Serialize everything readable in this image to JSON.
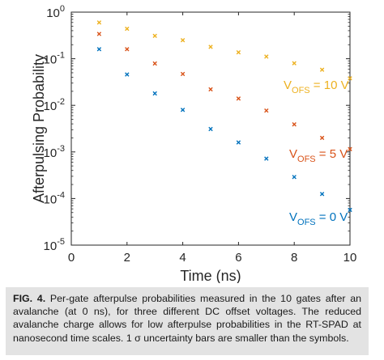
{
  "chart_data": {
    "type": "scatter",
    "xlabel": "Time (ns)",
    "ylabel": "Afterpulsing Probability",
    "xlim": [
      0,
      10
    ],
    "ylim": [
      1e-05,
      1
    ],
    "yscale": "log",
    "x_ticks": [
      "0",
      "2",
      "4",
      "6",
      "8",
      "10"
    ],
    "x_tick_values": [
      0,
      2,
      4,
      6,
      8,
      10
    ],
    "y_ticks": [
      {
        "base": "10",
        "exp": "0"
      },
      {
        "base": "10",
        "exp": "-1"
      },
      {
        "base": "10",
        "exp": "-2"
      },
      {
        "base": "10",
        "exp": "-3"
      },
      {
        "base": "10",
        "exp": "-4"
      },
      {
        "base": "10",
        "exp": "-5"
      }
    ],
    "grid": false,
    "marker": "x",
    "x": [
      1,
      2,
      3,
      4,
      5,
      6,
      7,
      8,
      9,
      10
    ],
    "series": [
      {
        "label_main": "V",
        "label_sub": "OFS",
        "label_value": " = 10 V",
        "color": "#edb120",
        "values": [
          0.6,
          0.44,
          0.31,
          0.25,
          0.18,
          0.137,
          0.111,
          0.08,
          0.058,
          0.038
        ]
      },
      {
        "label_main": "V",
        "label_sub": "OFS",
        "label_value": " = 5 V",
        "color": "#d95319",
        "values": [
          0.34,
          0.16,
          0.079,
          0.047,
          0.022,
          0.014,
          0.0077,
          0.0039,
          0.002,
          0.00115
        ]
      },
      {
        "label_main": "V",
        "label_sub": "OFS",
        "label_value": " = 0 V",
        "color": "#0072bd",
        "values": [
          0.16,
          0.046,
          0.018,
          0.008,
          0.0031,
          0.0016,
          0.00072,
          0.00029,
          0.000125,
          5.7e-05
        ]
      }
    ]
  },
  "caption": {
    "label": "FIG. 4.",
    "text": " Per-gate afterpulse probabilities measured in the 10 gates after an avalanche (at 0 ns), for three different DC offset voltages. The reduced avalanche charge allows for low afterpulse probabilities in the RT-SPAD at nanosecond time scales. 1 σ uncertainty bars are smaller than the symbols."
  }
}
